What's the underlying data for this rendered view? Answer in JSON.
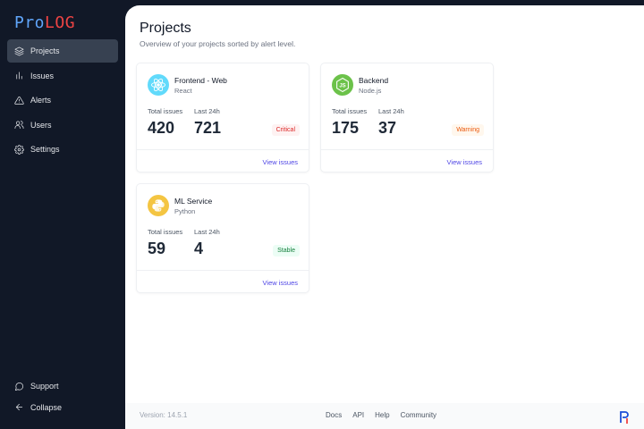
{
  "app": {
    "logo_part1": "Pro",
    "logo_part2": "LOG",
    "accent_blue": "#60a5fa",
    "accent_red": "#ef4444"
  },
  "sidebar": {
    "items": [
      {
        "label": "Projects",
        "icon": "layers-icon",
        "active": true
      },
      {
        "label": "Issues",
        "icon": "bar-chart-icon"
      },
      {
        "label": "Alerts",
        "icon": "alert-triangle-icon"
      },
      {
        "label": "Users",
        "icon": "users-icon"
      },
      {
        "label": "Settings",
        "icon": "gear-icon"
      }
    ],
    "bottom": [
      {
        "label": "Support",
        "icon": "chat-bubble-icon"
      },
      {
        "label": "Collapse",
        "icon": "arrow-left-icon"
      }
    ]
  },
  "main": {
    "title": "Projects",
    "subtitle": "Overview of your projects sorted by alert level."
  },
  "projects": [
    {
      "name": "Frontend - Web",
      "tech": "React",
      "total_label": "Total issues",
      "total": "420",
      "last_label": "Last 24h",
      "last": "721",
      "status": "Critical",
      "link": "View issues",
      "icon": "react-icon",
      "icon_bg": "#61dafb"
    },
    {
      "name": "Backend",
      "tech": "Node.js",
      "total_label": "Total issues",
      "total": "175",
      "last_label": "Last 24h",
      "last": "37",
      "status": "Warning",
      "link": "View issues",
      "icon": "nodejs-icon",
      "icon_bg": "#6cc24a"
    },
    {
      "name": "ML Service",
      "tech": "Python",
      "total_label": "Total issues",
      "total": "59",
      "last_label": "Last 24h",
      "last": "4",
      "status": "Stable",
      "link": "View issues",
      "icon": "python-icon",
      "icon_bg": "#f4c542"
    }
  ],
  "footer": {
    "version": "Version: 14.5.1",
    "links": [
      "Docs",
      "API",
      "Help",
      "Community"
    ]
  }
}
